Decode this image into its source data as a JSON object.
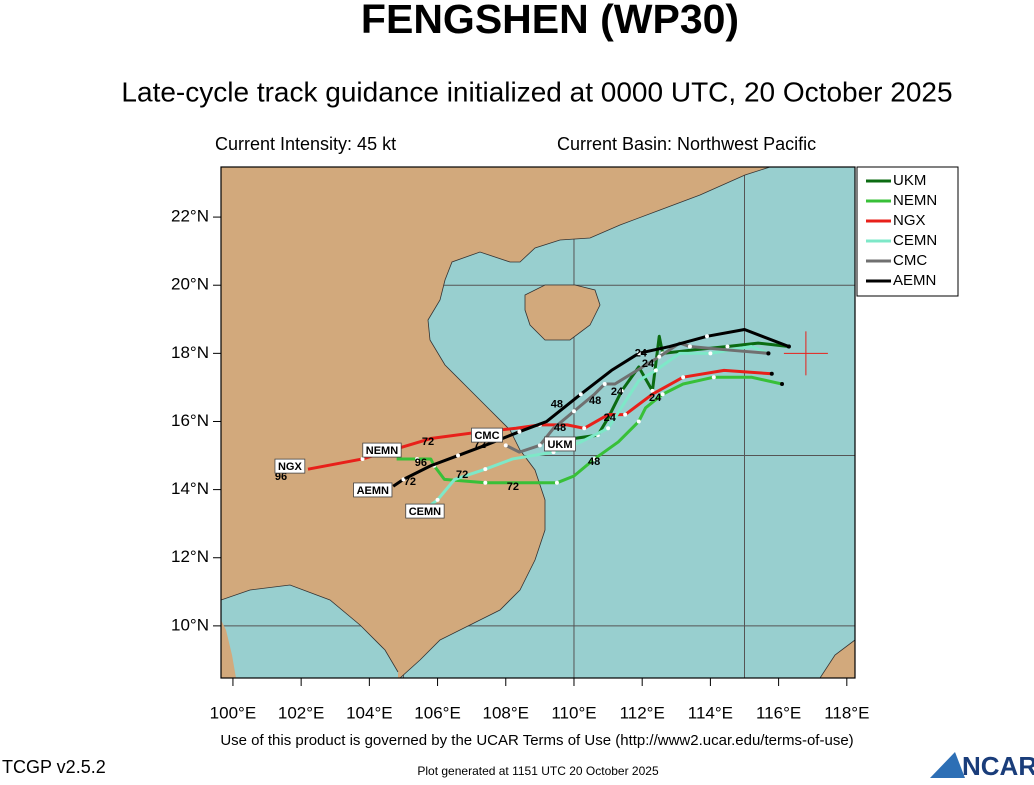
{
  "header": {
    "title": "FENGSHEN (WP30)",
    "subtitle": "Late-cycle track guidance initialized at 0000 UTC, 20 October 2025",
    "intensity": "Current Intensity: 45 kt",
    "basin": "Current Basin: Northwest Pacific"
  },
  "map": {
    "lonlim": [
      99.65,
      118.24
    ],
    "latlim": [
      8.47,
      23.47
    ],
    "lonticks": [
      {
        "value": 100,
        "label": "100°E"
      },
      {
        "value": 102,
        "label": "102°E"
      },
      {
        "value": 104,
        "label": "104°E"
      },
      {
        "value": 106,
        "label": "106°E"
      },
      {
        "value": 108,
        "label": "108°E"
      },
      {
        "value": 110,
        "label": "110°E"
      },
      {
        "value": 112,
        "label": "112°E"
      },
      {
        "value": 114,
        "label": "114°E"
      },
      {
        "value": 116,
        "label": "116°E"
      },
      {
        "value": 118,
        "label": "118°E"
      }
    ],
    "latticks": [
      {
        "value": 10,
        "label": "10°N"
      },
      {
        "value": 12,
        "label": "12°N"
      },
      {
        "value": 14,
        "label": "14°N"
      },
      {
        "value": 16,
        "label": "16°N"
      },
      {
        "value": 18,
        "label": "18°N"
      },
      {
        "value": 20,
        "label": "20°N"
      },
      {
        "value": 22,
        "label": "22°N"
      }
    ],
    "grid_lons": [
      105,
      110,
      115
    ],
    "grid_lats": [
      10,
      15,
      20
    ],
    "storm": {
      "lon": 116.8,
      "lat": 18.0,
      "color": "#e8201a"
    },
    "tracks": [
      {
        "name": "UKM",
        "color": "#0b6b12",
        "lon": [
          116.3,
          115.4,
          114.5,
          113.5,
          112.6,
          112.5,
          112.3,
          111.9,
          111.4,
          111.0,
          110.7,
          110.0,
          109.6
        ],
        "lat": [
          18.2,
          18.3,
          18.2,
          18.1,
          18.0,
          18.5,
          16.9,
          17.6,
          16.9,
          16.1,
          15.6,
          15.5,
          15.5
        ]
      },
      {
        "name": "NEMN",
        "color": "#38c038",
        "lon": [
          116.1,
          115.2,
          114.1,
          113.2,
          112.6,
          112.1,
          111.9,
          111.3,
          110.6,
          110.0,
          109.5,
          108.6,
          107.4,
          106.2,
          105.9,
          105.8,
          105.4,
          104.8
        ],
        "lat": [
          17.1,
          17.3,
          17.3,
          17.1,
          16.8,
          16.4,
          16.0,
          15.4,
          14.9,
          14.4,
          14.2,
          14.2,
          14.2,
          14.3,
          14.7,
          14.9,
          14.9,
          14.9
        ]
      },
      {
        "name": "NGX",
        "color": "#e8201a",
        "lon": [
          115.8,
          114.4,
          113.2,
          112.3,
          111.5,
          111.0,
          110.3,
          109.8,
          109.0,
          108.3,
          107.3,
          105.8,
          103.8,
          102.2
        ],
        "lat": [
          17.4,
          17.5,
          17.3,
          16.8,
          16.2,
          16.2,
          15.8,
          15.9,
          15.9,
          15.8,
          15.7,
          15.5,
          14.9,
          14.6
        ]
      },
      {
        "name": "CEMN",
        "color": "#7ee8c8",
        "lon": [
          115.7,
          115.2,
          114.0,
          113.1,
          112.4,
          111.9,
          111.0,
          110.2,
          109.4,
          108.2,
          107.4,
          106.5,
          106.0,
          105.6
        ],
        "lat": [
          18.0,
          18.2,
          18.0,
          18.0,
          17.5,
          17.2,
          15.8,
          15.4,
          15.1,
          14.9,
          14.6,
          14.3,
          13.7,
          13.4
        ]
      },
      {
        "name": "CMC",
        "color": "#707070",
        "lon": [
          115.7,
          114.5,
          113.4,
          113.1,
          112.5,
          111.2,
          110.9,
          110.6,
          110.0,
          109.4,
          109.0,
          108.4,
          108.0
        ],
        "lat": [
          18.0,
          18.1,
          18.2,
          18.3,
          17.9,
          17.1,
          17.1,
          16.8,
          16.3,
          15.8,
          15.3,
          15.1,
          15.3
        ]
      },
      {
        "name": "AEMN",
        "color": "#000000",
        "lon": [
          116.3,
          115.0,
          113.9,
          112.8,
          111.9,
          111.1,
          110.2,
          109.2,
          108.4,
          107.4,
          106.6,
          105.8,
          105.0,
          104.7
        ],
        "lat": [
          18.2,
          18.7,
          18.5,
          18.2,
          18.0,
          17.5,
          16.8,
          16.0,
          15.7,
          15.3,
          15.0,
          14.7,
          14.3,
          14.1
        ]
      }
    ],
    "track_labels": [
      {
        "text": "NGX",
        "lon": 101.67,
        "lat": 14.69
      },
      {
        "text": "NEMN",
        "lon": 104.37,
        "lat": 15.16
      },
      {
        "text": "CMC",
        "lon": 107.45,
        "lat": 15.6
      },
      {
        "text": "AEMN",
        "lon": 104.1,
        "lat": 13.99
      },
      {
        "text": "CEMN",
        "lon": 105.63,
        "lat": 13.37
      },
      {
        "text": "UKM",
        "lon": 109.59,
        "lat": 15.34
      }
    ],
    "hour_labels": [
      {
        "text": "24",
        "lon": 111.96,
        "lat": 18.0
      },
      {
        "text": "24",
        "lon": 112.17,
        "lat": 17.69
      },
      {
        "text": "24",
        "lon": 111.26,
        "lat": 16.86
      },
      {
        "text": "24",
        "lon": 111.05,
        "lat": 16.1
      },
      {
        "text": "24",
        "lon": 112.38,
        "lat": 16.69
      },
      {
        "text": "48",
        "lon": 109.5,
        "lat": 16.5
      },
      {
        "text": "48",
        "lon": 110.62,
        "lat": 16.6
      },
      {
        "text": "48",
        "lon": 109.59,
        "lat": 15.81
      },
      {
        "text": "48",
        "lon": 110.59,
        "lat": 14.81
      },
      {
        "text": "72",
        "lon": 105.72,
        "lat": 15.4
      },
      {
        "text": "72",
        "lon": 107.24,
        "lat": 15.31
      },
      {
        "text": "72",
        "lon": 106.72,
        "lat": 14.43
      },
      {
        "text": "72",
        "lon": 108.21,
        "lat": 14.08
      },
      {
        "text": "72",
        "lon": 105.19,
        "lat": 14.22
      },
      {
        "text": "96",
        "lon": 105.51,
        "lat": 14.78
      },
      {
        "text": "96",
        "lon": 101.41,
        "lat": 14.37
      }
    ]
  },
  "footer": {
    "terms": "Use of this product is governed by the UCAR Terms of Use (http://www2.ucar.edu/terms-of-use)",
    "version": "TCGP v2.5.2",
    "generated": "Plot generated at 1151 UTC   20 October 2025",
    "logo": "NCAR"
  }
}
